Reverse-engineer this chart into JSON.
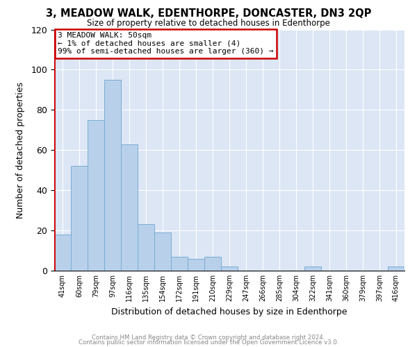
{
  "title": "3, MEADOW WALK, EDENTHORPE, DONCASTER, DN3 2QP",
  "subtitle": "Size of property relative to detached houses in Edenthorpe",
  "xlabel": "Distribution of detached houses by size in Edenthorpe",
  "ylabel": "Number of detached properties",
  "bin_labels": [
    "41sqm",
    "60sqm",
    "79sqm",
    "97sqm",
    "116sqm",
    "135sqm",
    "154sqm",
    "172sqm",
    "191sqm",
    "210sqm",
    "229sqm",
    "247sqm",
    "266sqm",
    "285sqm",
    "304sqm",
    "322sqm",
    "341sqm",
    "360sqm",
    "379sqm",
    "397sqm",
    "416sqm"
  ],
  "bar_heights": [
    18,
    52,
    75,
    95,
    63,
    23,
    19,
    7,
    6,
    7,
    2,
    0,
    0,
    0,
    0,
    2,
    0,
    0,
    0,
    0,
    2
  ],
  "bar_color": "#b8d0ea",
  "bar_edge_color": "#7aadd4",
  "annotation_box_text": "3 MEADOW WALK: 50sqm\n← 1% of detached houses are smaller (4)\n99% of semi-detached houses are larger (360) →",
  "annotation_box_color": "#ffffff",
  "annotation_box_edge_color": "#cc0000",
  "red_line_color": "#cc0000",
  "ylim": [
    0,
    120
  ],
  "yticks": [
    0,
    20,
    40,
    60,
    80,
    100,
    120
  ],
  "footer_line1": "Contains HM Land Registry data © Crown copyright and database right 2024.",
  "footer_line2": "Contains public sector information licensed under the Open Government Licence v3.0.",
  "fig_bg_color": "#ffffff",
  "plot_bg_color": "#dce6f5",
  "grid_color": "#ffffff",
  "footer_color": "#888888"
}
